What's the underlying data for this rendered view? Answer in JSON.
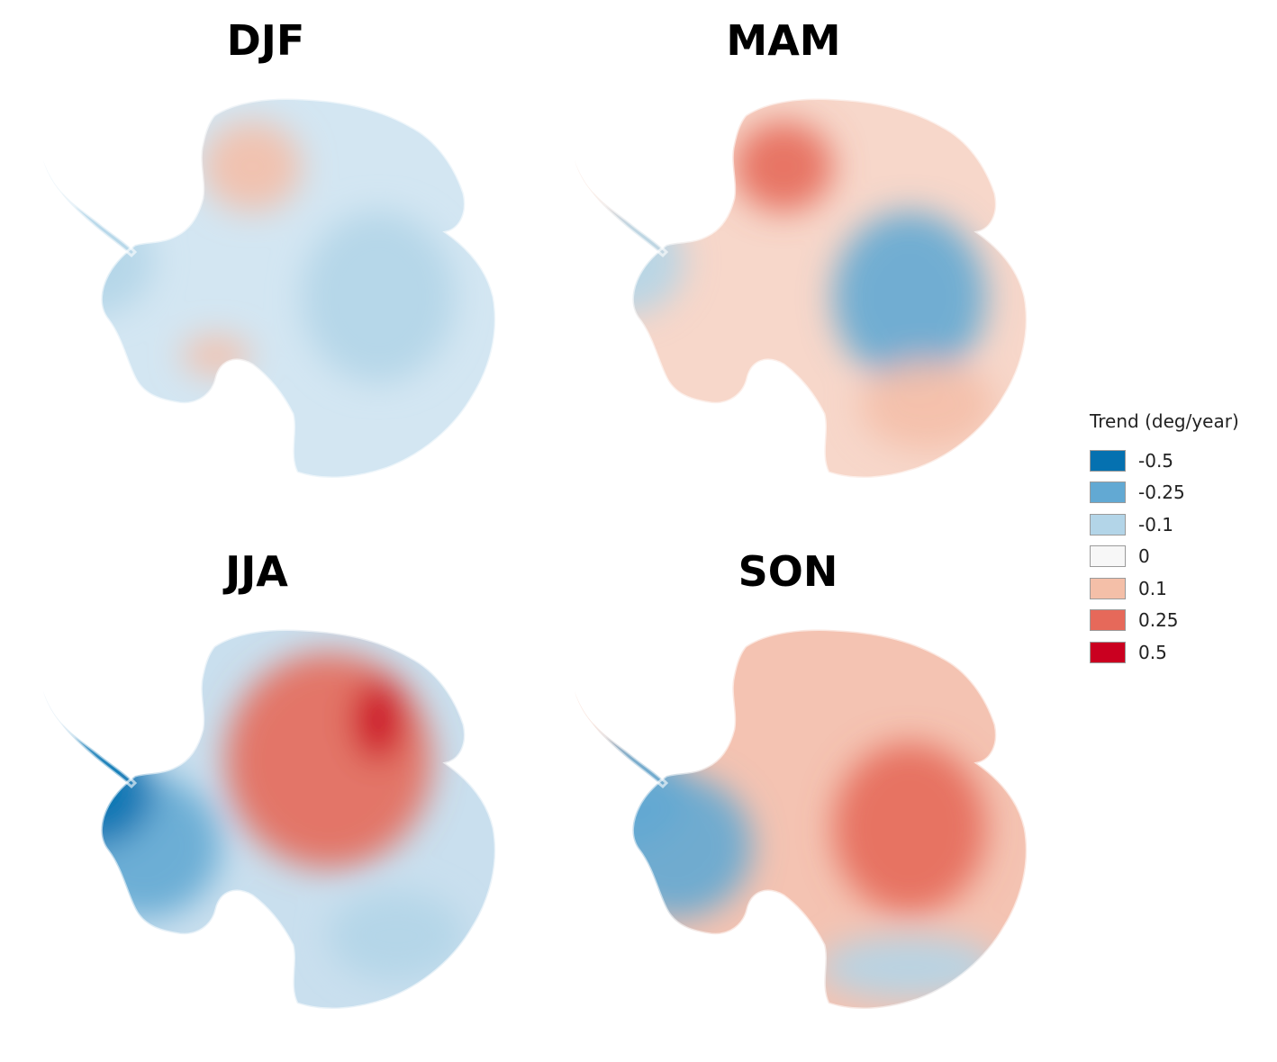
{
  "panels": [
    {
      "id": "djf",
      "title": "DJF",
      "base": "#d3e6f2",
      "landmass": "-0.1",
      "regions": [
        {
          "name": "queen-maud-land",
          "class": "0.1"
        },
        {
          "name": "antarctic-peninsula",
          "class": "-0.1"
        },
        {
          "name": "ross-ice-shelf",
          "class": "0.1"
        },
        {
          "name": "east-antarctica",
          "class": "-0.1"
        }
      ]
    },
    {
      "id": "mam",
      "title": "MAM",
      "base": "#f7d7ca",
      "landmass": "0.1",
      "regions": [
        {
          "name": "queen-maud-land",
          "class": "0.25"
        },
        {
          "name": "east-antarctica",
          "class": "-0.25"
        },
        {
          "name": "wilkes-land",
          "class": "0.1"
        },
        {
          "name": "antarctic-peninsula",
          "class": "-0.1"
        }
      ]
    },
    {
      "id": "jja",
      "title": "JJA",
      "base": "#c9dfee",
      "landmass": "-0.1",
      "regions": [
        {
          "name": "east-antarctica-interior",
          "class": "0.25"
        },
        {
          "name": "amery-ice-shelf",
          "class": "0.5"
        },
        {
          "name": "west-antarctica",
          "class": "-0.25"
        },
        {
          "name": "antarctic-peninsula",
          "class": "-0.5"
        },
        {
          "name": "wilkes-land",
          "class": "-0.1"
        }
      ]
    },
    {
      "id": "son",
      "title": "SON",
      "base": "#f4c3b2",
      "landmass": "0.1",
      "regions": [
        {
          "name": "east-antarctica",
          "class": "0.25"
        },
        {
          "name": "west-antarctica",
          "class": "-0.25"
        },
        {
          "name": "antarctic-peninsula",
          "class": "-0.25"
        },
        {
          "name": "coast",
          "class": "-0.1"
        }
      ]
    }
  ],
  "legend": {
    "title": "Trend (deg/year)",
    "items": [
      {
        "label": "-0.5",
        "color": "#0571b0"
      },
      {
        "label": "-0.25",
        "color": "#62a9d3"
      },
      {
        "label": "-0.1",
        "color": "#b3d5e8"
      },
      {
        "label": "0",
        "color": "#f7f7f7"
      },
      {
        "label": "0.1",
        "color": "#f4bfa8"
      },
      {
        "label": "0.25",
        "color": "#e6695a"
      },
      {
        "label": "0.5",
        "color": "#ca0020"
      }
    ]
  }
}
